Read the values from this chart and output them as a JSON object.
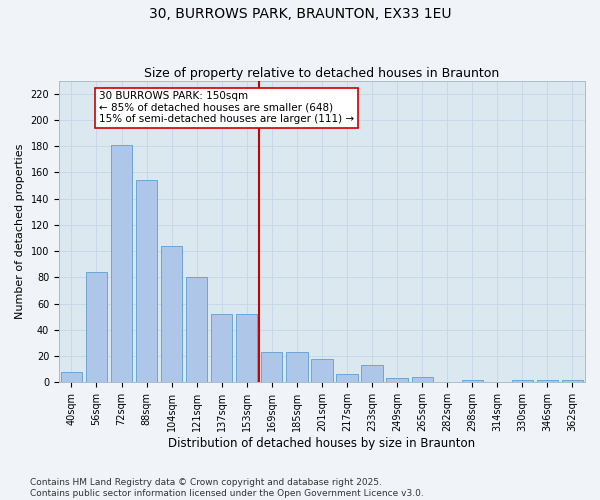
{
  "title": "30, BURROWS PARK, BRAUNTON, EX33 1EU",
  "subtitle": "Size of property relative to detached houses in Braunton",
  "xlabel": "Distribution of detached houses by size in Braunton",
  "ylabel": "Number of detached properties",
  "categories": [
    "40sqm",
    "56sqm",
    "72sqm",
    "88sqm",
    "104sqm",
    "121sqm",
    "137sqm",
    "153sqm",
    "169sqm",
    "185sqm",
    "201sqm",
    "217sqm",
    "233sqm",
    "249sqm",
    "265sqm",
    "282sqm",
    "298sqm",
    "314sqm",
    "330sqm",
    "346sqm",
    "362sqm"
  ],
  "values": [
    8,
    84,
    181,
    154,
    104,
    80,
    52,
    52,
    23,
    23,
    18,
    6,
    13,
    3,
    4,
    0,
    2,
    0,
    2,
    2,
    2
  ],
  "bar_color": "#aec6e8",
  "bar_edge_color": "#5a9fd4",
  "vline_color": "#cc0000",
  "annotation_text": "30 BURROWS PARK: 150sqm\n← 85% of detached houses are smaller (648)\n15% of semi-detached houses are larger (111) →",
  "annotation_box_color": "#ffffff",
  "annotation_box_edge": "#cc0000",
  "ylim": [
    0,
    230
  ],
  "yticks": [
    0,
    20,
    40,
    60,
    80,
    100,
    120,
    140,
    160,
    180,
    200,
    220
  ],
  "grid_color": "#c8d8e8",
  "background_color": "#dce8f0",
  "fig_background_color": "#f0f4f8",
  "footer": "Contains HM Land Registry data © Crown copyright and database right 2025.\nContains public sector information licensed under the Open Government Licence v3.0.",
  "title_fontsize": 10,
  "subtitle_fontsize": 9,
  "xlabel_fontsize": 8.5,
  "ylabel_fontsize": 8,
  "tick_fontsize": 7,
  "annotation_fontsize": 7.5,
  "footer_fontsize": 6.5
}
